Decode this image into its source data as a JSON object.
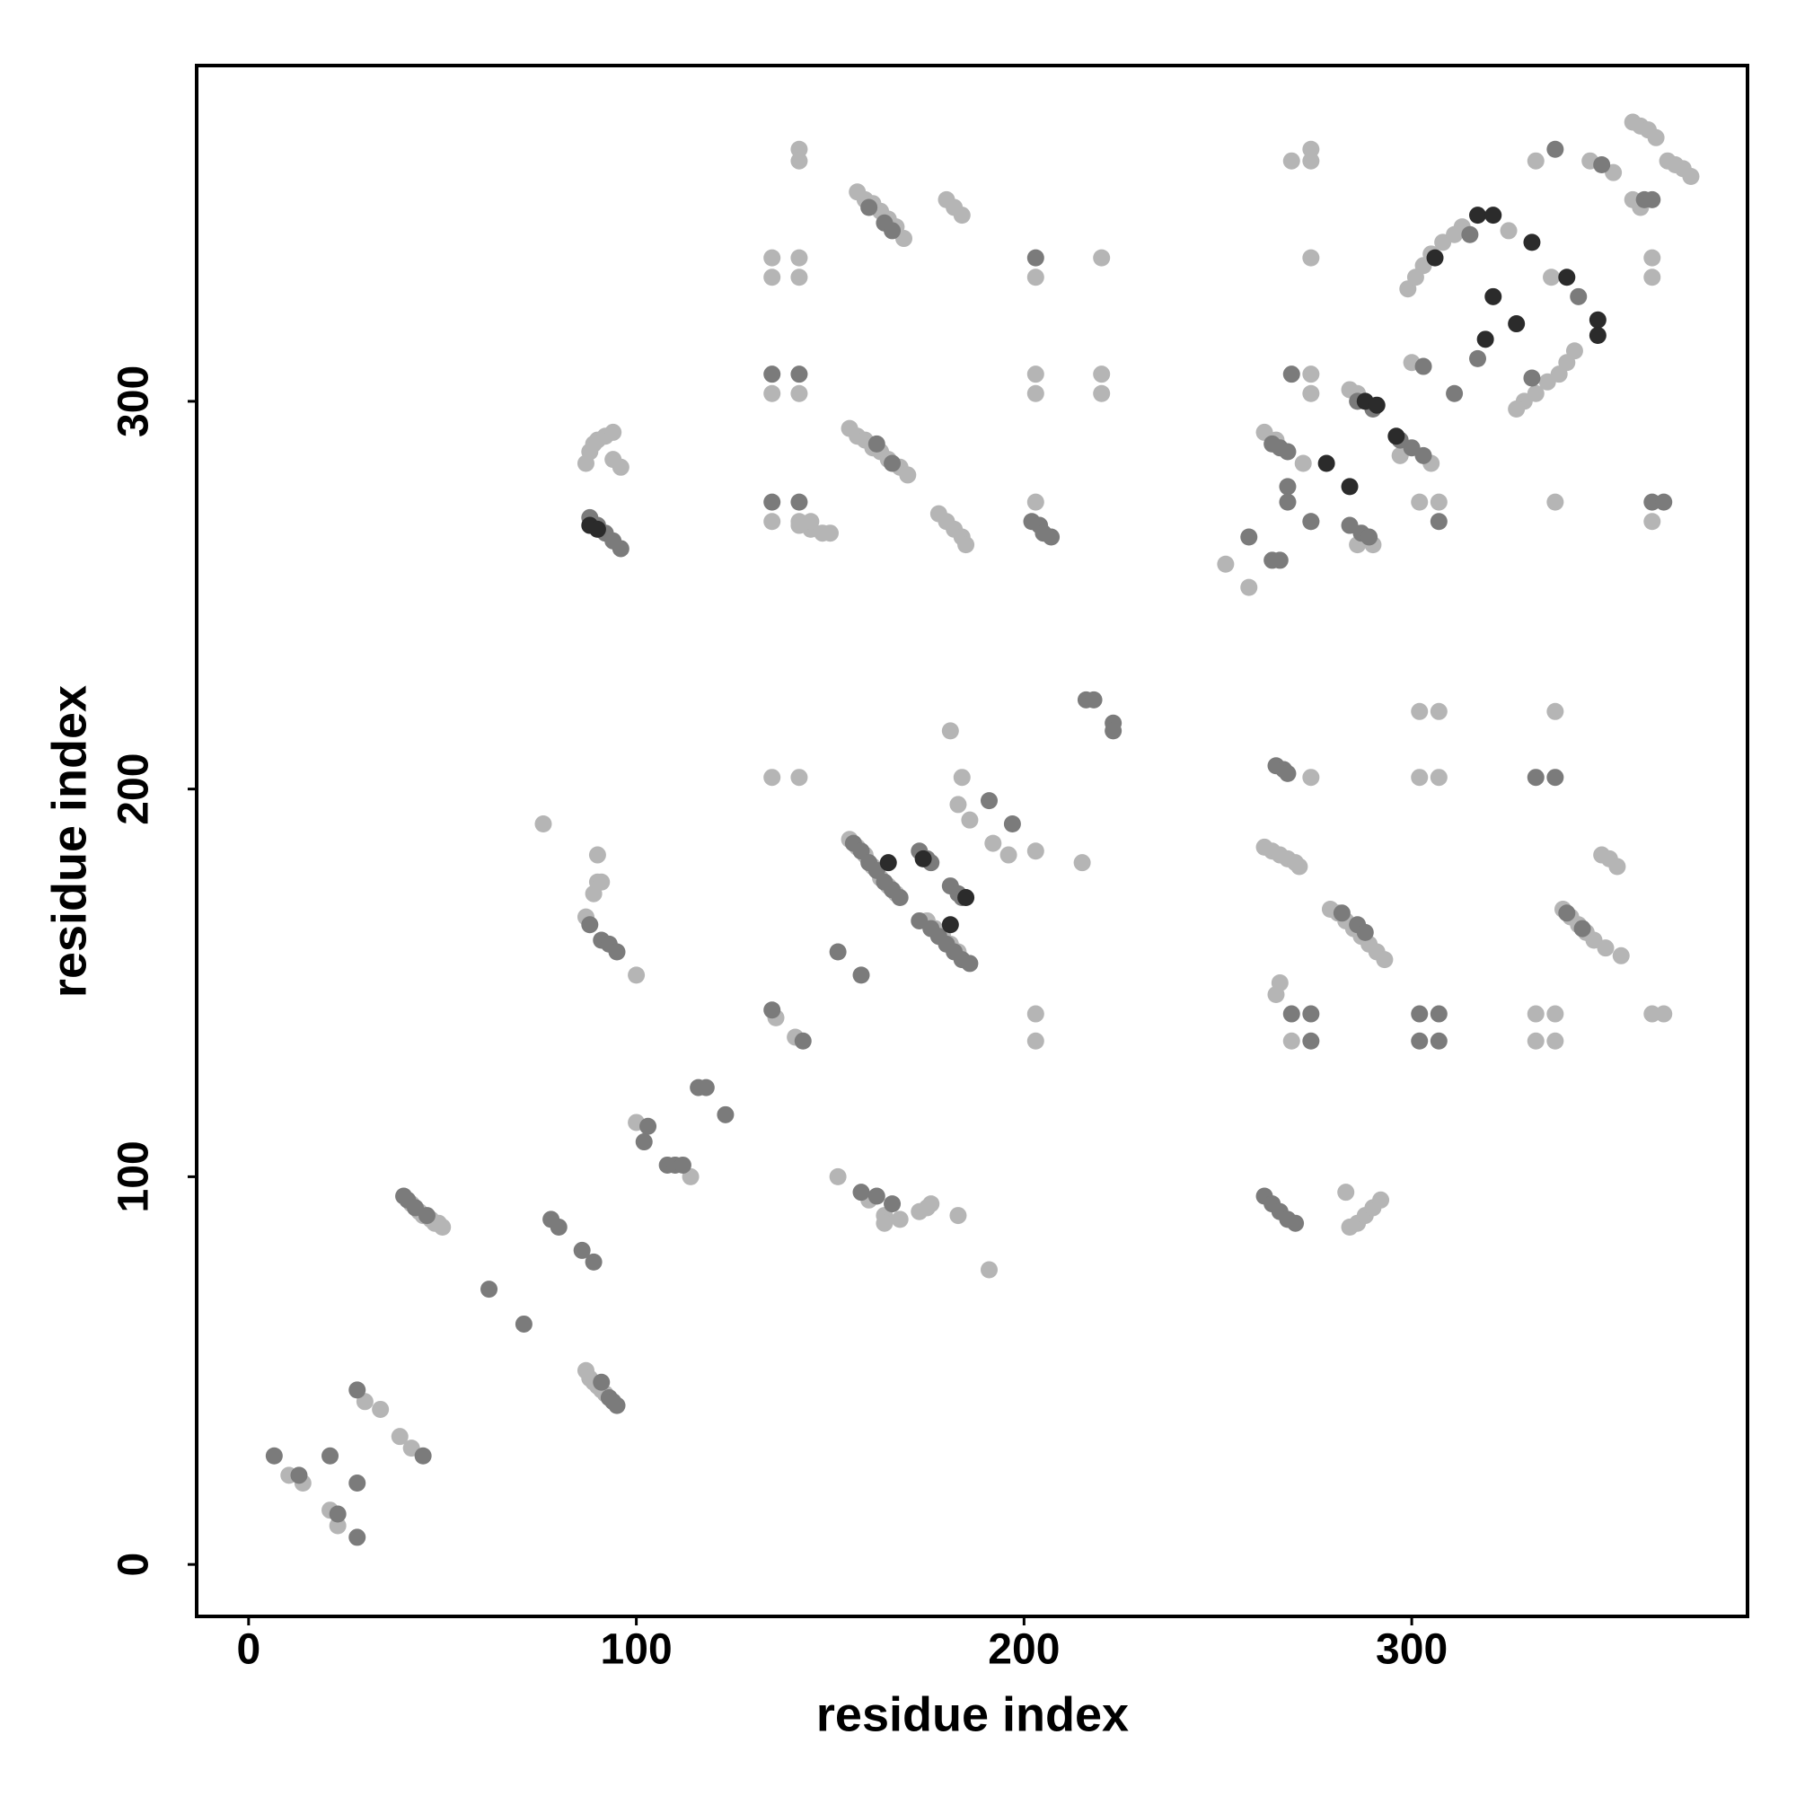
{
  "chart_data": {
    "type": "scatter",
    "x_label": "residue index",
    "y_label": "residue index",
    "xlim": [
      -13.4,
      386.6
    ],
    "ylim": [
      -13.4,
      386.6
    ],
    "xticks": [
      0,
      100,
      200,
      300
    ],
    "yticks": [
      0,
      100,
      200,
      300
    ],
    "series": [
      {
        "color": "#b5b5b5",
        "x": [
          10.4,
          14,
          21,
          23,
          30,
          34,
          39,
          42,
          42,
          44,
          45,
          47,
          48,
          49,
          50,
          87,
          88,
          89,
          90,
          91,
          92,
          100,
          114,
          76,
          90,
          90,
          89,
          91,
          87,
          100,
          136,
          141,
          135,
          142,
          155,
          157,
          159,
          161,
          163,
          165,
          167,
          175,
          177,
          179,
          181,
          183,
          181,
          184,
          183,
          186,
          192,
          196,
          203,
          215,
          160,
          164,
          168,
          164,
          173,
          175,
          176,
          183,
          191,
          152,
          203,
          203,
          262,
          264,
          266,
          268,
          270,
          271,
          274,
          266,
          265,
          269,
          279,
          281,
          283,
          285,
          287,
          289,
          291,
          293,
          302,
          307,
          302,
          307,
          332,
          337,
          332,
          337,
          337,
          339,
          341,
          343,
          345,
          347,
          350,
          354,
          349,
          351,
          353,
          362,
          365,
          284,
          286,
          288,
          290,
          292,
          283,
          142,
          142,
          135,
          142,
          135,
          142,
          135,
          142,
          135,
          142,
          157,
          159,
          161,
          163,
          165,
          167,
          169,
          180,
          182,
          184,
          87,
          88,
          89,
          90,
          92,
          94,
          96,
          142,
          145,
          148,
          150,
          155,
          157,
          159,
          161,
          163,
          165,
          168,
          170,
          178,
          180,
          182,
          184,
          185,
          203,
          220,
          203,
          203,
          220,
          220,
          203,
          269,
          274,
          274,
          274,
          274,
          274,
          299,
          301,
          303,
          305,
          308,
          311,
          313,
          325,
          336,
          342,
          340,
          338,
          335,
          332,
          329,
          327,
          300,
          297,
          305,
          262,
          265,
          272,
          274,
          286,
          290,
          252,
          258,
          302,
          307,
          337,
          332,
          346,
          352,
          357,
          359,
          361,
          363,
          366,
          368,
          370,
          372,
          357,
          359,
          362,
          362,
          362,
          284,
          286,
          145,
          94
        ],
        "values": [
          23,
          21,
          14,
          10,
          42,
          40,
          33,
          30,
          93,
          91,
          90,
          89,
          88,
          88,
          87,
          50,
          48,
          47,
          46,
          45,
          44,
          114,
          100,
          191,
          183,
          176,
          173,
          176,
          167,
          152,
          141,
          136,
          203,
          203,
          187,
          185,
          183,
          180,
          177,
          175,
          173,
          166,
          164,
          162,
          160,
          158,
          215,
          203,
          196,
          192,
          186,
          183,
          184,
          181,
          94,
          90,
          89,
          88,
          91,
          92,
          93,
          90,
          76,
          100,
          142,
          135,
          185,
          184,
          183,
          182,
          181,
          180,
          203,
          150,
          147,
          135,
          169,
          168,
          166,
          164,
          162,
          160,
          158,
          156,
          220,
          220,
          203,
          203,
          142,
          142,
          135,
          135,
          220,
          169,
          167,
          165,
          163,
          161,
          159,
          157,
          183,
          182,
          180,
          142,
          142,
          87,
          88,
          90,
          92,
          94,
          96,
          365,
          362,
          337,
          337,
          332,
          332,
          302,
          302,
          269,
          269,
          354,
          352,
          351,
          349,
          347,
          345,
          342,
          352,
          350,
          348,
          284,
          287,
          289,
          290,
          291,
          292,
          283,
          268,
          267,
          266,
          266,
          293,
          291,
          290,
          288,
          287,
          285,
          283,
          281,
          271,
          269,
          267,
          265,
          263,
          332,
          337,
          307,
          302,
          307,
          302,
          274,
          362,
          365,
          362,
          337,
          307,
          302,
          329,
          332,
          335,
          338,
          341,
          343,
          345,
          344,
          332,
          313,
          310,
          307,
          305,
          302,
          300,
          298,
          310,
          286,
          284,
          292,
          290,
          284,
          269,
          263,
          263,
          258,
          252,
          274,
          274,
          274,
          362,
          362,
          359,
          372,
          371,
          370,
          368,
          362,
          361,
          360,
          358,
          352,
          350,
          337,
          332,
          269,
          303,
          302,
          269,
          285
        ]
      },
      {
        "color": "#7b7b7b",
        "x": [
          6.6,
          13,
          21,
          23,
          28,
          28,
          28,
          45,
          40,
          41,
          43,
          46,
          62,
          71,
          78,
          80,
          86,
          89,
          93,
          94,
          95,
          91,
          103,
          102,
          108,
          110,
          112,
          116,
          118,
          123,
          88,
          91,
          93,
          95,
          152,
          158,
          135,
          143,
          156,
          158,
          160,
          162,
          164,
          166,
          168,
          173,
          175,
          176,
          173,
          176,
          178,
          180,
          182,
          184,
          186,
          181,
          183,
          184,
          191,
          197,
          216,
          218,
          223,
          223,
          158,
          162,
          166,
          265,
          267,
          268,
          269,
          274,
          274,
          282,
          286,
          288,
          302,
          307,
          302,
          307,
          332,
          337,
          340,
          344,
          262,
          264,
          266,
          268,
          270,
          135,
          142,
          135,
          142,
          160,
          164,
          166,
          162,
          166,
          88,
          90,
          92,
          94,
          96,
          203,
          202,
          204,
          205,
          207,
          269,
          337,
          315,
          343,
          331,
          303,
          317,
          311,
          286,
          290,
          297,
          300,
          303,
          264,
          266,
          268,
          268,
          268,
          274,
          284,
          287,
          289,
          258,
          264,
          266,
          307,
          349,
          360,
          362,
          362,
          365
        ],
        "values": [
          28,
          23,
          28,
          13,
          45,
          21,
          7,
          28,
          95,
          94,
          92,
          90,
          71,
          62,
          89,
          87,
          81,
          78,
          43,
          42,
          41,
          47,
          113,
          109,
          103,
          103,
          103,
          123,
          123,
          116,
          165,
          161,
          160,
          158,
          158,
          152,
          143,
          135,
          186,
          184,
          181,
          179,
          176,
          174,
          172,
          184,
          182,
          181,
          166,
          164,
          162,
          160,
          158,
          156,
          155,
          175,
          173,
          172,
          197,
          191,
          223,
          223,
          217,
          215,
          96,
          95,
          93,
          206,
          205,
          204,
          142,
          142,
          135,
          168,
          165,
          163,
          142,
          142,
          135,
          135,
          203,
          203,
          168,
          164,
          95,
          93,
          91,
          89,
          88,
          307,
          307,
          274,
          274,
          350,
          346,
          344,
          289,
          284,
          270,
          268,
          266,
          264,
          262,
          337,
          269,
          268,
          266,
          265,
          307,
          365,
          343,
          327,
          306,
          309,
          311,
          302,
          300,
          298,
          290,
          288,
          286,
          289,
          288,
          287,
          278,
          274,
          269,
          268,
          266,
          265,
          265,
          259,
          259,
          269,
          361,
          352,
          352,
          274,
          274
        ]
      },
      {
        "color": "#2b2b2b",
        "x": [
          165,
          181,
          88,
          90,
          317,
          321,
          331,
          340,
          348,
          348,
          321,
          327,
          319,
          306,
          288,
          291,
          278,
          284,
          296,
          174,
          185
        ],
        "values": [
          181,
          165,
          268,
          267,
          348,
          348,
          341,
          332,
          321,
          317,
          327,
          320,
          316,
          337,
          300,
          299,
          284,
          278,
          291,
          182,
          172
        ]
      }
    ]
  }
}
